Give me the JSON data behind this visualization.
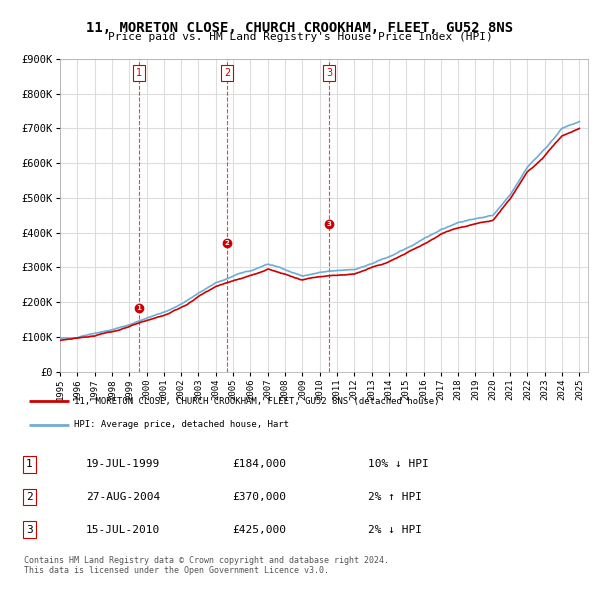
{
  "title": "11, MORETON CLOSE, CHURCH CROOKHAM, FLEET, GU52 8NS",
  "subtitle": "Price paid vs. HM Land Registry's House Price Index (HPI)",
  "ylim": [
    0,
    900000
  ],
  "yticks": [
    0,
    100000,
    200000,
    300000,
    400000,
    500000,
    600000,
    700000,
    800000,
    900000
  ],
  "ytick_labels": [
    "£0",
    "£100K",
    "£200K",
    "£300K",
    "£400K",
    "£500K",
    "£600K",
    "£700K",
    "£800K",
    "£900K"
  ],
  "hpi_color": "#6baed6",
  "price_color": "#cc0000",
  "purchase_marker_color": "#cc0000",
  "dashed_line_color": "#cc0000",
  "background_color": "#ffffff",
  "grid_color": "#dddddd",
  "purchases": [
    {
      "date_num": 1999.54,
      "price": 184000,
      "label": "1"
    },
    {
      "date_num": 2004.65,
      "price": 370000,
      "label": "2"
    },
    {
      "date_num": 2010.54,
      "price": 425000,
      "label": "3"
    }
  ],
  "purchase_table": [
    {
      "num": "1",
      "date": "19-JUL-1999",
      "price": "£184,000",
      "hpi_diff": "10% ↓ HPI"
    },
    {
      "num": "2",
      "date": "27-AUG-2004",
      "price": "£370,000",
      "hpi_diff": "2% ↑ HPI"
    },
    {
      "num": "3",
      "date": "15-JUL-2010",
      "price": "£425,000",
      "hpi_diff": "2% ↓ HPI"
    }
  ],
  "legend_property_label": "11, MORETON CLOSE, CHURCH CROOKHAM, FLEET, GU52 8NS (detached house)",
  "legend_hpi_label": "HPI: Average price, detached house, Hart",
  "footer1": "Contains HM Land Registry data © Crown copyright and database right 2024.",
  "footer2": "This data is licensed under the Open Government Licence v3.0.",
  "hpi_data": {
    "years": [
      1995,
      1996,
      1997,
      1998,
      1999,
      2000,
      2001,
      2002,
      2003,
      2004,
      2005,
      2006,
      2007,
      2008,
      2009,
      2010,
      2011,
      2012,
      2013,
      2014,
      2015,
      2016,
      2017,
      2018,
      2019,
      2020,
      2021,
      2022,
      2023,
      2024,
      2025
    ],
    "hpi_values": [
      95000,
      100000,
      112000,
      120000,
      135000,
      155000,
      170000,
      195000,
      225000,
      255000,
      275000,
      290000,
      310000,
      295000,
      275000,
      285000,
      290000,
      295000,
      310000,
      330000,
      355000,
      380000,
      410000,
      430000,
      440000,
      450000,
      510000,
      590000,
      640000,
      700000,
      720000
    ],
    "price_values": [
      90000,
      95000,
      105000,
      115000,
      130000,
      148000,
      162000,
      185000,
      215000,
      245000,
      262000,
      275000,
      295000,
      280000,
      262000,
      272000,
      277000,
      282000,
      298000,
      318000,
      340000,
      365000,
      395000,
      415000,
      425000,
      435000,
      495000,
      575000,
      620000,
      680000,
      700000
    ]
  }
}
